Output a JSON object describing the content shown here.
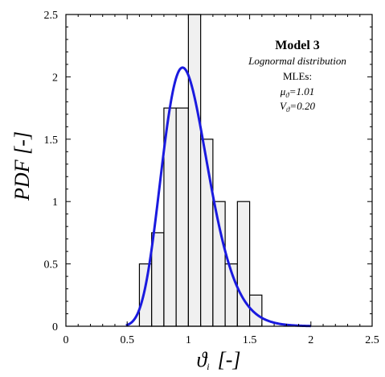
{
  "chart_data": {
    "type": "bar",
    "subtype": "histogram-with-density",
    "xlabel": "ϑ",
    "xlabel_subscript": "i",
    "xlabel_unit": "[-]",
    "ylabel": "PDF [-]",
    "xlim": [
      0,
      2.5
    ],
    "ylim": [
      0,
      2.5
    ],
    "x_ticks": [
      0,
      0.5,
      1,
      1.5,
      2,
      2.5
    ],
    "x_tick_labels": [
      "0",
      "0.5",
      "1",
      "1.5",
      "2",
      "2.5"
    ],
    "y_ticks": [
      0,
      0.5,
      1,
      1.5,
      2,
      2.5
    ],
    "y_tick_labels": [
      "0",
      "0.5",
      "1",
      "1.5",
      "2",
      "2.5"
    ],
    "bin_width": 0.1,
    "bins": [
      {
        "x0": 0.6,
        "x1": 0.7,
        "value": 0.5
      },
      {
        "x0": 0.7,
        "x1": 0.8,
        "value": 0.75
      },
      {
        "x0": 0.8,
        "x1": 0.9,
        "value": 1.75
      },
      {
        "x0": 0.9,
        "x1": 1.0,
        "value": 1.75
      },
      {
        "x0": 1.0,
        "x1": 1.1,
        "value": 2.5
      },
      {
        "x0": 1.1,
        "x1": 1.2,
        "value": 1.5
      },
      {
        "x0": 1.2,
        "x1": 1.3,
        "value": 1.0
      },
      {
        "x0": 1.3,
        "x1": 1.4,
        "value": 0.5
      },
      {
        "x0": 1.4,
        "x1": 1.5,
        "value": 1.0
      },
      {
        "x0": 1.5,
        "x1": 1.6,
        "value": 0.25
      }
    ],
    "density_curve": {
      "distribution": "lognormal",
      "mean": 1.01,
      "cov": 0.2,
      "x_range": [
        0.49,
        2.0
      ],
      "color": "#1a1adf"
    },
    "bar_fill": "#f0f0f0",
    "bar_stroke": "#000000",
    "annotation": {
      "title": "Model 3",
      "subtitle": "Lognormal distribution",
      "label": "MLEs:",
      "mu_symbol": "μ",
      "mu_sub": "ϑ",
      "mu_value": "=1.01",
      "v_symbol": "V",
      "v_sub": "ϑ",
      "v_value": "=0.20"
    }
  }
}
